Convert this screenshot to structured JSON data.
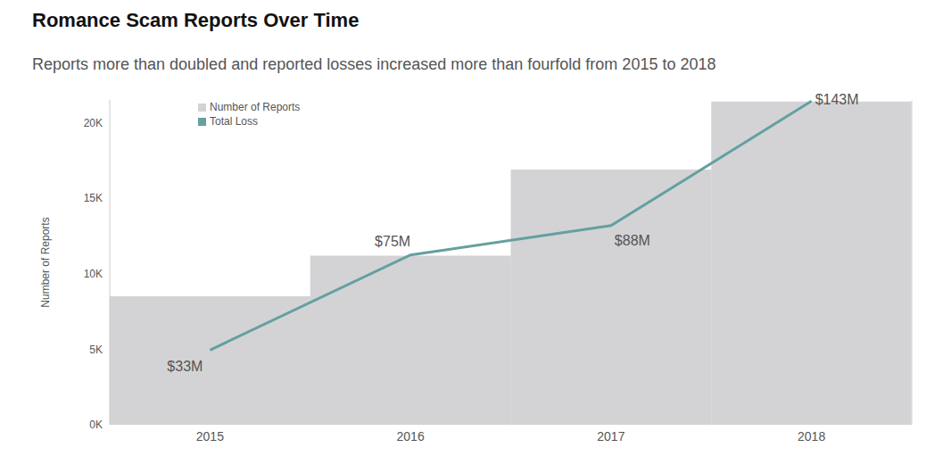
{
  "chart_data": {
    "type": "bar",
    "title": "Romance Scam Reports Over Time",
    "subtitle": "Reports more than doubled and reported losses increased more than fourfold from 2015 to 2018",
    "y_label": "Number of Reports",
    "categories": [
      "2015",
      "2016",
      "2017",
      "2018"
    ],
    "series": [
      {
        "name": "Number of Reports",
        "type": "bar",
        "color": "#d3d3d5",
        "values": [
          8500,
          11200,
          16900,
          21400
        ]
      },
      {
        "name": "Total Loss",
        "type": "line",
        "axis": "y2",
        "color": "#64a0a0",
        "values": [
          33,
          75,
          88,
          143
        ],
        "value_labels": [
          "$33M",
          "$75M",
          "$88M",
          "$143M"
        ],
        "data_labels": true
      }
    ],
    "ylim": [
      0,
      21500
    ],
    "yticks": [
      {
        "value": 0,
        "label": "0K"
      },
      {
        "value": 5000,
        "label": "5K"
      },
      {
        "value": 10000,
        "label": "10K"
      },
      {
        "value": 15000,
        "label": "15K"
      },
      {
        "value": 20000,
        "label": "20K"
      }
    ],
    "y2lim": [
      0,
      143.5
    ],
    "y2ticks": [],
    "legend": "top left",
    "grid": false
  }
}
